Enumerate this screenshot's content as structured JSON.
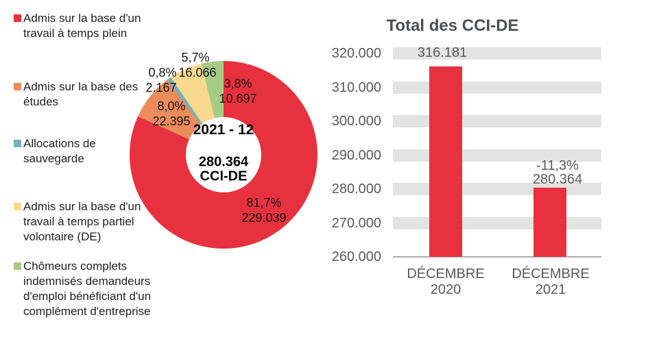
{
  "accent_color": "#e8313e",
  "grid_band_color": "#e3e3e3",
  "legend": {
    "items": [
      {
        "color": "#e8313e",
        "text": "Admis sur la base d'un\ntravail à temps plein"
      },
      {
        "color": "#ec8b5b",
        "text": "Admis sur la base des\nétudes"
      },
      {
        "color": "#74b1b9",
        "text": "Allocations de\nsauvegarde"
      },
      {
        "color": "#f9d98e",
        "text": "Admis sur la base d'un\ntravail à temps partiel\nvolontaire (DE)"
      },
      {
        "color": "#a6cb84",
        "text": "Chômeurs complets\nindemnisés demandeurs\nd'emploi bénéficiant d'un\ncomplément d'entreprise"
      }
    ]
  },
  "chart_data": [
    {
      "type": "pie",
      "subtype": "donut",
      "title": "2021 - 12",
      "center_text": {
        "period": "2021 - 12",
        "total": "280.364",
        "unit": "CCI-DE"
      },
      "total_value": 280364,
      "legend_position": "left",
      "slices": [
        {
          "name": "Admis sur la base d'un travail à temps plein",
          "pct": 81.7,
          "value": 229039,
          "pct_label": "81,7%",
          "value_label": "229.039",
          "color": "#e8313e"
        },
        {
          "name": "Admis sur la base des études",
          "pct": 8.0,
          "value": 22395,
          "pct_label": "8,0%",
          "value_label": "22.395",
          "color": "#ec8b5b"
        },
        {
          "name": "Allocations de sauvegarde",
          "pct": 0.8,
          "value": 2167,
          "pct_label": "0,8%",
          "value_label": "2.167",
          "color": "#74b1b9"
        },
        {
          "name": "Admis sur la base d'un travail à temps partiel volontaire (DE)",
          "pct": 5.7,
          "value": 16066,
          "pct_label": "5,7%",
          "value_label": "16.066",
          "color": "#f9d98e"
        },
        {
          "name": "Chômeurs complets indemnisés demandeurs d'emploi bénéficiant d'un complément d'entreprise",
          "pct": 3.8,
          "value": 10697,
          "pct_label": "3,8%",
          "value_label": "10.697",
          "color": "#a6cb84"
        }
      ]
    },
    {
      "type": "bar",
      "title": "Total des CCI-DE",
      "categories": [
        "DÉCEMBRE\n2020",
        "DÉCEMBRE\n2021"
      ],
      "values": [
        316181,
        280364
      ],
      "value_labels": [
        "316.181",
        "280.364"
      ],
      "delta_label": "-11,3%",
      "bar_color": "#e8313e",
      "ylim": [
        260000,
        320000
      ],
      "ytick_step": 10000,
      "yticks": [
        {
          "value": 320000,
          "label": "320.000"
        },
        {
          "value": 310000,
          "label": "310.000"
        },
        {
          "value": 300000,
          "label": "300.000"
        },
        {
          "value": 290000,
          "label": "290.000"
        },
        {
          "value": 280000,
          "label": "280.000"
        },
        {
          "value": 270000,
          "label": "270.000"
        },
        {
          "value": 260000,
          "label": "260.000"
        }
      ],
      "grid": "thick-horizontal-bands",
      "legend_position": "none"
    }
  ]
}
